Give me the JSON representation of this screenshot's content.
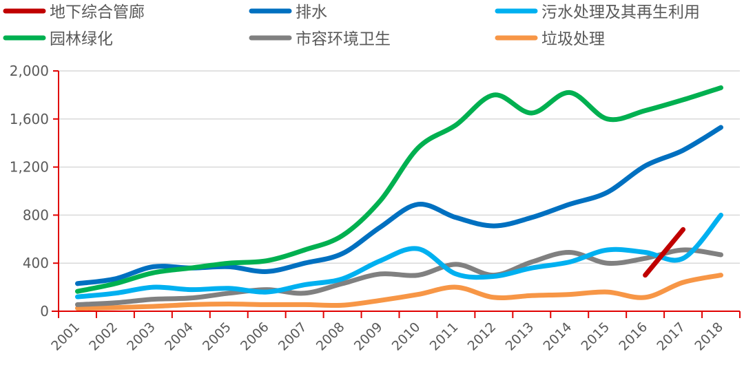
{
  "chart_data": {
    "type": "line",
    "title": "",
    "xlabel": "",
    "ylabel": "",
    "ylim": [
      0,
      2000
    ],
    "yticks": [
      0,
      400,
      800,
      1200,
      1600,
      2000
    ],
    "ytick_labels": [
      "0",
      "400",
      "800",
      "1,200",
      "1,600",
      "2,000"
    ],
    "grid": true,
    "legend_position": "top",
    "smooth": true,
    "categories": [
      "2001",
      "2002",
      "2003",
      "2004",
      "2005",
      "2006",
      "2007",
      "2008",
      "2009",
      "2010",
      "2011",
      "2012",
      "2013",
      "2014",
      "2015",
      "2016",
      "2017",
      "2018"
    ],
    "series": [
      {
        "name": "地下综合管廊",
        "color": "#C00000",
        "values": [
          null,
          null,
          null,
          null,
          null,
          null,
          null,
          null,
          null,
          null,
          null,
          null,
          null,
          null,
          null,
          300,
          680,
          null
        ]
      },
      {
        "name": "排水",
        "color": "#0070C0",
        "values": [
          230,
          270,
          370,
          360,
          370,
          330,
          400,
          480,
          700,
          890,
          780,
          710,
          780,
          890,
          990,
          1210,
          1340,
          1530
        ]
      },
      {
        "name": "污水处理及其再生利用",
        "color": "#00B0F0",
        "values": [
          120,
          150,
          200,
          180,
          190,
          160,
          220,
          270,
          420,
          520,
          310,
          290,
          360,
          410,
          510,
          490,
          440,
          800
        ]
      },
      {
        "name": "园林绿化",
        "color": "#00B050",
        "values": [
          165,
          230,
          320,
          360,
          400,
          420,
          510,
          630,
          920,
          1360,
          1550,
          1800,
          1650,
          1820,
          1600,
          1670,
          1760,
          1860
        ]
      },
      {
        "name": "市容环境卫生",
        "color": "#808080",
        "values": [
          55,
          70,
          100,
          110,
          150,
          180,
          150,
          230,
          310,
          300,
          390,
          300,
          410,
          490,
          400,
          440,
          510,
          470
        ]
      },
      {
        "name": "垃圾处理",
        "color": "#F79646",
        "values": [
          25,
          30,
          40,
          55,
          60,
          55,
          55,
          50,
          90,
          140,
          200,
          115,
          130,
          140,
          160,
          115,
          240,
          300
        ]
      }
    ]
  },
  "style": {
    "axis_color": "#E00000",
    "grid_color": "#D9D9D9",
    "text_color": "#595959"
  }
}
